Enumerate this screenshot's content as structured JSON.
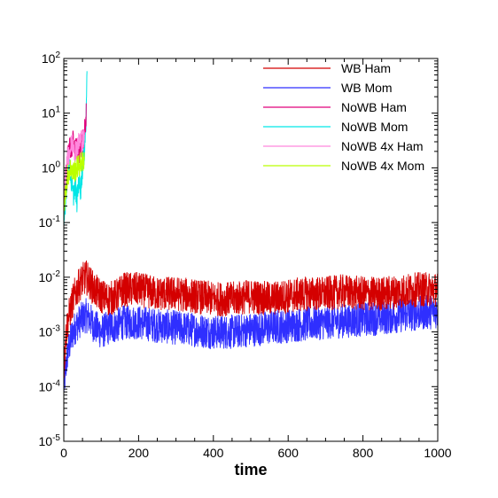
{
  "chart_data": {
    "type": "line",
    "title": "",
    "xlabel": "time",
    "ylabel": "",
    "xlim": [
      0,
      1000
    ],
    "ylim": [
      1e-05,
      100
    ],
    "yscale": "log",
    "x_ticks": [
      "0",
      "200",
      "400",
      "600",
      "800",
      "1000"
    ],
    "y_ticks": [
      {
        "base": "10",
        "exp": "-5"
      },
      {
        "base": "10",
        "exp": "-4"
      },
      {
        "base": "10",
        "exp": "-3"
      },
      {
        "base": "10",
        "exp": "-2"
      },
      {
        "base": "10",
        "exp": "-1"
      },
      {
        "base": "10",
        "exp": "0"
      },
      {
        "base": "10",
        "exp": "1"
      },
      {
        "base": "10",
        "exp": "2"
      }
    ],
    "legend_position": "top-right",
    "series": [
      {
        "name": "WB Ham",
        "color": "#d40000",
        "x": [
          0,
          5,
          10,
          20,
          30,
          40,
          50,
          60,
          70,
          80,
          100,
          120,
          140,
          160,
          200,
          250,
          300,
          350,
          400,
          450,
          500,
          550,
          600,
          650,
          700,
          750,
          800,
          850,
          900,
          950,
          1000
        ],
        "y": [
          0.0002,
          0.0008,
          0.0015,
          0.003,
          0.005,
          0.007,
          0.009,
          0.01,
          0.008,
          0.006,
          0.0045,
          0.004,
          0.0045,
          0.006,
          0.006,
          0.005,
          0.005,
          0.0045,
          0.004,
          0.004,
          0.0045,
          0.004,
          0.0045,
          0.005,
          0.005,
          0.0055,
          0.005,
          0.005,
          0.0055,
          0.006,
          0.006
        ]
      },
      {
        "name": "WB Mom",
        "color": "#2f2fff",
        "x": [
          0,
          5,
          10,
          20,
          30,
          40,
          50,
          60,
          70,
          80,
          100,
          120,
          140,
          160,
          200,
          250,
          300,
          350,
          400,
          450,
          500,
          550,
          600,
          650,
          700,
          750,
          800,
          850,
          900,
          950,
          1000
        ],
        "y": [
          0.0001,
          0.0002,
          0.0004,
          0.0008,
          0.0012,
          0.0015,
          0.0018,
          0.002,
          0.0017,
          0.0013,
          0.001,
          0.0012,
          0.0013,
          0.0015,
          0.0015,
          0.0013,
          0.0012,
          0.0011,
          0.001,
          0.001,
          0.0011,
          0.0012,
          0.0013,
          0.0014,
          0.0015,
          0.0016,
          0.0017,
          0.0018,
          0.002,
          0.0022,
          0.0024
        ]
      },
      {
        "name": "NoWB Ham",
        "color": "#e0007a",
        "x": [
          0,
          5,
          10,
          15,
          20,
          25,
          30,
          35,
          40,
          45,
          50,
          55,
          60
        ],
        "y": [
          0.2,
          0.6,
          1.5,
          2.5,
          2.0,
          3.0,
          2.2,
          2.5,
          1.8,
          2.5,
          3.0,
          4.0,
          10
        ]
      },
      {
        "name": "NoWB Mom",
        "color": "#00e6e6",
        "x": [
          0,
          5,
          10,
          15,
          20,
          25,
          30,
          35,
          40,
          45,
          50,
          55,
          60,
          62
        ],
        "y": [
          0.08,
          0.3,
          0.8,
          1.0,
          0.6,
          0.3,
          0.5,
          0.25,
          0.6,
          0.4,
          1.0,
          2.0,
          8.0,
          90
        ]
      },
      {
        "name": "NoWB 4x Ham",
        "color": "#ff88dd",
        "x": [
          0,
          5,
          10,
          15,
          20,
          25,
          30,
          35,
          40,
          45,
          50,
          55
        ],
        "y": [
          0.3,
          0.8,
          1.5,
          2.0,
          2.5,
          3.0,
          2.0,
          2.5,
          2.8,
          3.5,
          3.0,
          3.5
        ]
      },
      {
        "name": "NoWB 4x Mom",
        "color": "#bbff00",
        "x": [
          0,
          5,
          10,
          15,
          20,
          25,
          30,
          35,
          40,
          45,
          50,
          55
        ],
        "y": [
          0.15,
          0.4,
          0.7,
          0.9,
          1.0,
          0.8,
          0.9,
          1.0,
          1.1,
          1.2,
          1.3,
          1.5
        ]
      }
    ]
  }
}
